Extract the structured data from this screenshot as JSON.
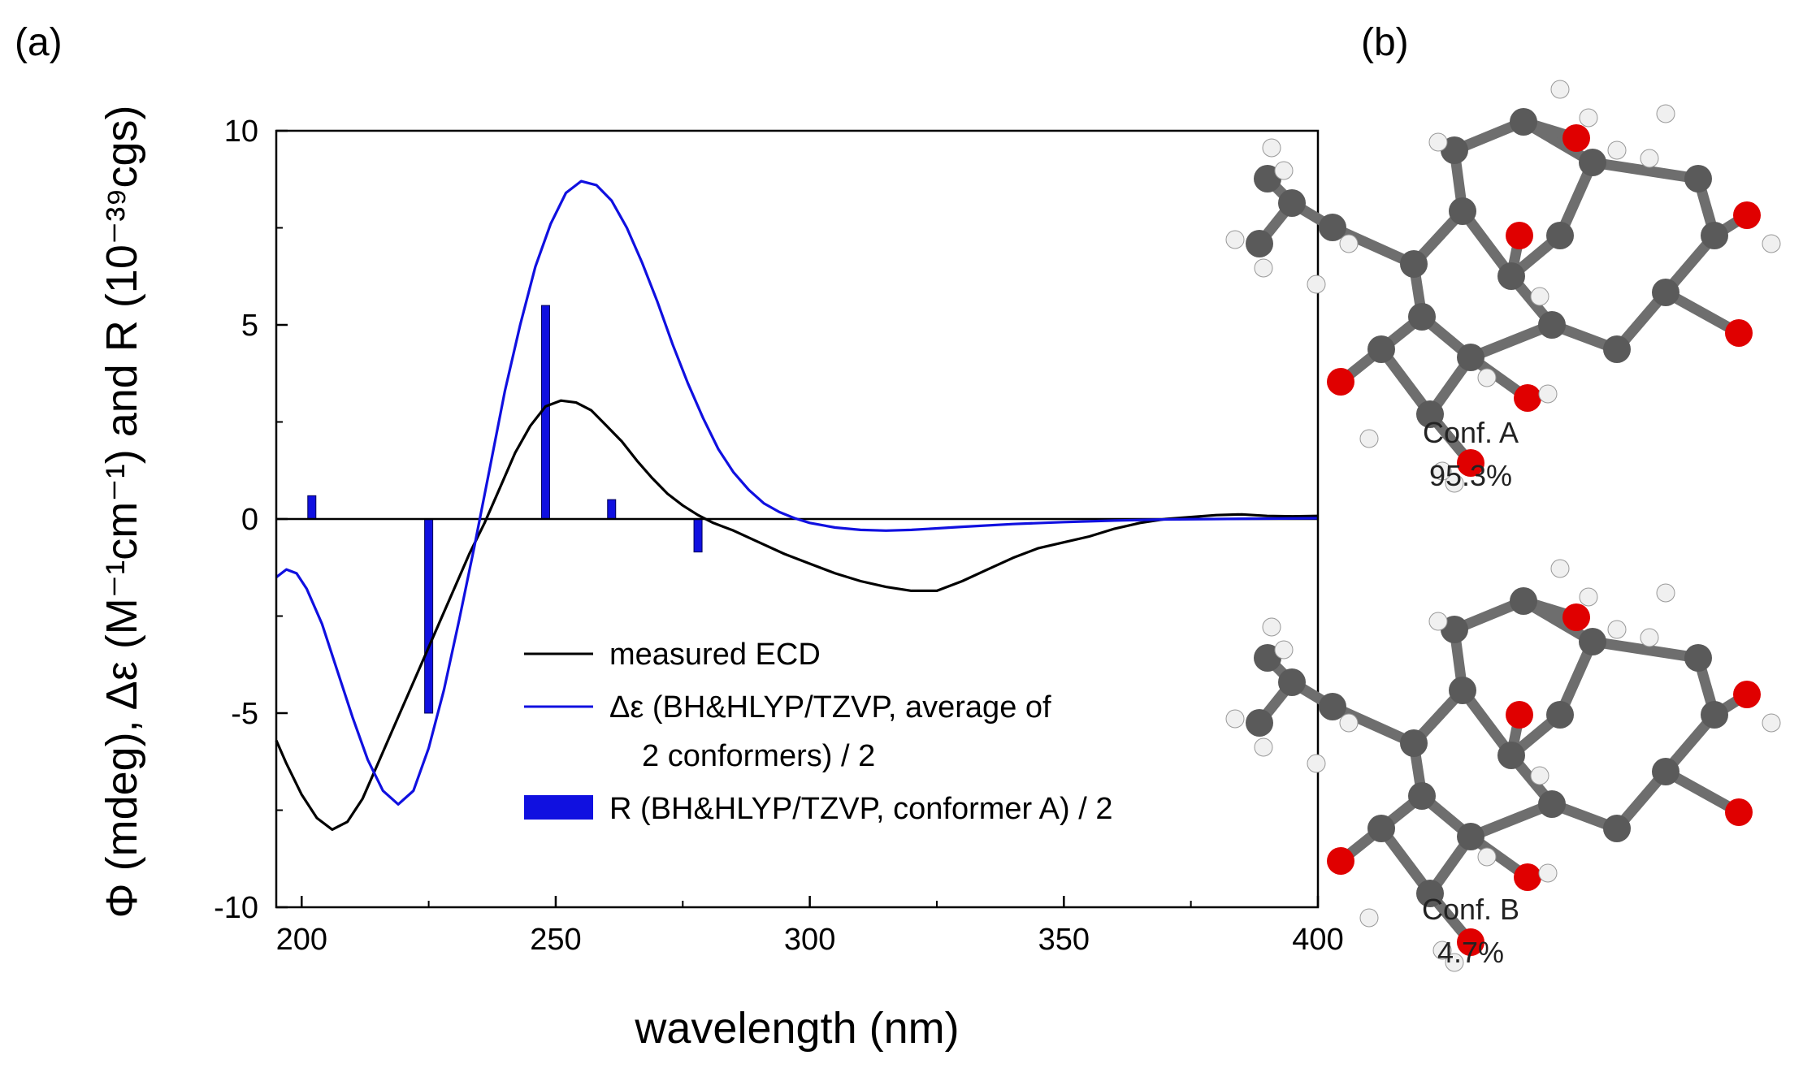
{
  "panels": {
    "a": "(a)",
    "b": "(b)"
  },
  "colors": {
    "measured": "#000000",
    "calc": "#1010e0",
    "sticks": "#1010e0",
    "carbon": "#5a5a5a",
    "oxygen": "#e00000",
    "hydrogen": "#f0f0f0"
  },
  "chart_data": {
    "type": "line",
    "xlabel": "wavelength (nm)",
    "ylabel": "Φ (mdeg), Δε (M⁻¹cm⁻¹) and R (10⁻³⁹cgs)",
    "xlim": [
      195,
      400
    ],
    "ylim": [
      -10,
      10
    ],
    "xticks": [
      200,
      250,
      300,
      350,
      400
    ],
    "yticks": [
      10,
      5,
      0,
      -5,
      -10
    ],
    "legend_position": "lower-right",
    "legend": [
      {
        "key": "measured",
        "text": [
          "measured ECD"
        ]
      },
      {
        "key": "calc",
        "text": [
          "Δε (BH&HLYP/TZVP, average of",
          "2 conformers) / 2"
        ]
      },
      {
        "key": "sticks",
        "text": [
          "R (BH&HLYP/TZVP, conformer A) / 2"
        ]
      }
    ],
    "series": [
      {
        "name": "measured ECD",
        "kind": "line",
        "color_key": "measured",
        "points": [
          [
            195,
            -5.7
          ],
          [
            197,
            -6.3
          ],
          [
            200,
            -7.1
          ],
          [
            203,
            -7.7
          ],
          [
            206,
            -8.0
          ],
          [
            209,
            -7.8
          ],
          [
            212,
            -7.2
          ],
          [
            215,
            -6.3
          ],
          [
            218,
            -5.4
          ],
          [
            221,
            -4.5
          ],
          [
            224,
            -3.6
          ],
          [
            227,
            -2.7
          ],
          [
            230,
            -1.8
          ],
          [
            233,
            -0.9
          ],
          [
            236,
            -0.1
          ],
          [
            239,
            0.8
          ],
          [
            242,
            1.7
          ],
          [
            245,
            2.4
          ],
          [
            248,
            2.9
          ],
          [
            251,
            3.05
          ],
          [
            254,
            3.0
          ],
          [
            257,
            2.8
          ],
          [
            260,
            2.4
          ],
          [
            263,
            2.0
          ],
          [
            266,
            1.5
          ],
          [
            269,
            1.05
          ],
          [
            272,
            0.65
          ],
          [
            275,
            0.35
          ],
          [
            278,
            0.1
          ],
          [
            281,
            -0.1
          ],
          [
            285,
            -0.3
          ],
          [
            290,
            -0.6
          ],
          [
            295,
            -0.9
          ],
          [
            300,
            -1.15
          ],
          [
            305,
            -1.4
          ],
          [
            310,
            -1.6
          ],
          [
            315,
            -1.75
          ],
          [
            320,
            -1.85
          ],
          [
            325,
            -1.85
          ],
          [
            330,
            -1.6
          ],
          [
            335,
            -1.3
          ],
          [
            340,
            -1.0
          ],
          [
            345,
            -0.75
          ],
          [
            350,
            -0.6
          ],
          [
            355,
            -0.45
          ],
          [
            360,
            -0.25
          ],
          [
            365,
            -0.1
          ],
          [
            370,
            0.0
          ],
          [
            375,
            0.05
          ],
          [
            380,
            0.1
          ],
          [
            385,
            0.12
          ],
          [
            390,
            0.08
          ],
          [
            395,
            0.07
          ],
          [
            400,
            0.08
          ]
        ]
      },
      {
        "name": "Δε (BH&HLYP/TZVP, average of 2 conformers) / 2",
        "kind": "line",
        "color_key": "calc",
        "points": [
          [
            195,
            -1.5
          ],
          [
            197,
            -1.3
          ],
          [
            199,
            -1.4
          ],
          [
            201,
            -1.8
          ],
          [
            204,
            -2.7
          ],
          [
            207,
            -3.9
          ],
          [
            210,
            -5.1
          ],
          [
            213,
            -6.2
          ],
          [
            216,
            -7.0
          ],
          [
            219,
            -7.35
          ],
          [
            222,
            -7.0
          ],
          [
            225,
            -5.9
          ],
          [
            228,
            -4.4
          ],
          [
            231,
            -2.6
          ],
          [
            234,
            -0.7
          ],
          [
            237,
            1.3
          ],
          [
            240,
            3.3
          ],
          [
            243,
            5.0
          ],
          [
            246,
            6.5
          ],
          [
            249,
            7.6
          ],
          [
            252,
            8.4
          ],
          [
            255,
            8.7
          ],
          [
            258,
            8.6
          ],
          [
            261,
            8.2
          ],
          [
            264,
            7.5
          ],
          [
            267,
            6.6
          ],
          [
            270,
            5.6
          ],
          [
            273,
            4.5
          ],
          [
            276,
            3.5
          ],
          [
            279,
            2.6
          ],
          [
            282,
            1.8
          ],
          [
            285,
            1.2
          ],
          [
            288,
            0.75
          ],
          [
            291,
            0.4
          ],
          [
            294,
            0.18
          ],
          [
            297,
            0.02
          ],
          [
            300,
            -0.1
          ],
          [
            305,
            -0.22
          ],
          [
            310,
            -0.28
          ],
          [
            315,
            -0.3
          ],
          [
            320,
            -0.28
          ],
          [
            330,
            -0.2
          ],
          [
            340,
            -0.13
          ],
          [
            350,
            -0.08
          ],
          [
            360,
            -0.04
          ],
          [
            370,
            -0.01
          ],
          [
            380,
            0.0
          ],
          [
            390,
            0.01
          ],
          [
            400,
            0.02
          ]
        ]
      },
      {
        "name": "R (BH&HLYP/TZVP, conformer A) / 2",
        "kind": "stick",
        "color_key": "sticks",
        "points": [
          [
            202,
            0.6
          ],
          [
            225,
            -5.0
          ],
          [
            248,
            5.5
          ],
          [
            261,
            0.5
          ],
          [
            278,
            -0.85
          ]
        ]
      }
    ]
  },
  "conformers": [
    {
      "label": "Conf. A",
      "percent": "95.3%"
    },
    {
      "label": "Conf. B",
      "percent": "4.7%"
    }
  ]
}
